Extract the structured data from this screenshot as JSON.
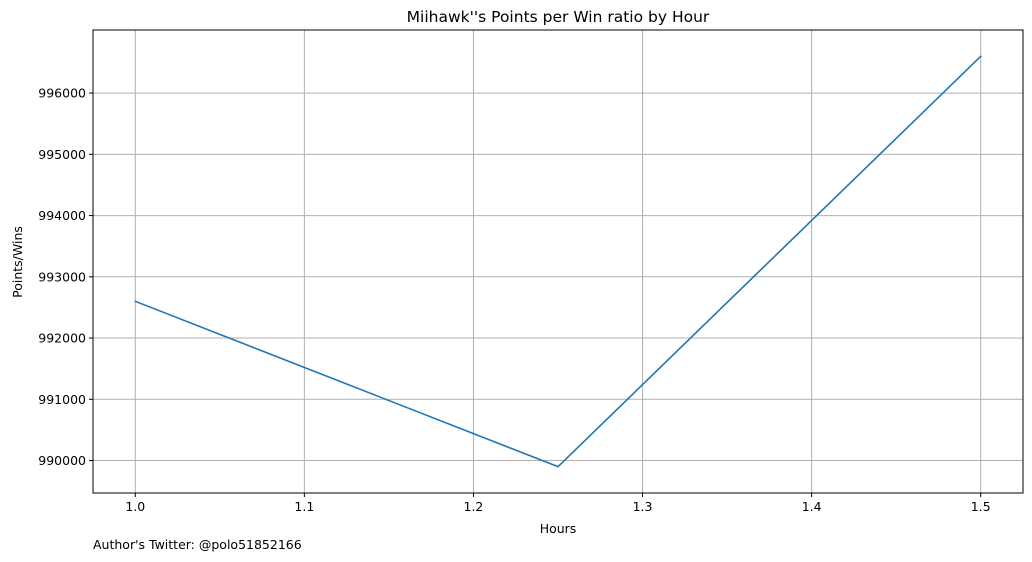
{
  "chart_data": {
    "type": "line",
    "title": "Miihawk''s Points per Win ratio by Hour",
    "xlabel": "Hours",
    "ylabel": "Points/Wins",
    "x": [
      1.0,
      1.25,
      1.5
    ],
    "series": [
      {
        "values": [
          992600,
          989900,
          996600
        ],
        "color": "#1f77b4"
      }
    ],
    "xlim": [
      0.975,
      1.525
    ],
    "ylim": [
      989470,
      997030
    ],
    "xticks": [
      1.0,
      1.1,
      1.2,
      1.3,
      1.4,
      1.5
    ],
    "xtick_labels": [
      "1.0",
      "1.1",
      "1.2",
      "1.3",
      "1.4",
      "1.5"
    ],
    "yticks": [
      990000,
      991000,
      992000,
      993000,
      994000,
      995000,
      996000
    ],
    "ytick_labels": [
      "990000",
      "991000",
      "992000",
      "993000",
      "994000",
      "995000",
      "996000"
    ],
    "grid": true,
    "grid_color": "#b0b0b0"
  },
  "footer": {
    "text": "Author's Twitter: @polo51852166"
  }
}
